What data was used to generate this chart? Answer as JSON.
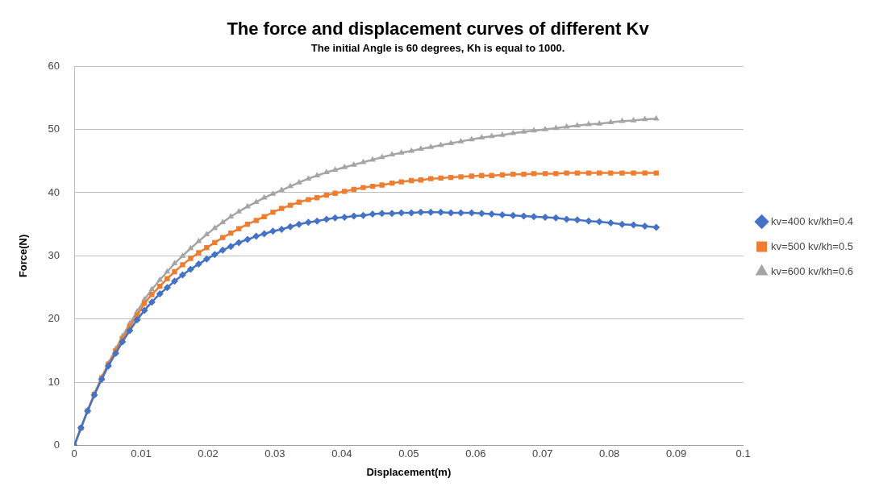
{
  "chart_data": {
    "type": "line",
    "title": "The force and displacement curves of different Kv",
    "subtitle": "The initial Angle is 60 degrees, Kh is equal to 1000.",
    "xlabel": "Displacement(m)",
    "ylabel": "Force(N)",
    "x": [
      0,
      0.001,
      0.002,
      0.003,
      0.0041,
      0.0051,
      0.0062,
      0.0072,
      0.0083,
      0.0094,
      0.0105,
      0.0116,
      0.0128,
      0.0139,
      0.015,
      0.0162,
      0.0174,
      0.0186,
      0.0198,
      0.021,
      0.0222,
      0.0234,
      0.0246,
      0.0259,
      0.0272,
      0.0284,
      0.0297,
      0.031,
      0.0323,
      0.0336,
      0.035,
      0.0363,
      0.0377,
      0.039,
      0.0404,
      0.0418,
      0.0432,
      0.0446,
      0.046,
      0.0475,
      0.0489,
      0.0504,
      0.0518,
      0.0533,
      0.0548,
      0.0563,
      0.0578,
      0.0594,
      0.0609,
      0.0624,
      0.064,
      0.0656,
      0.0672,
      0.0687,
      0.0704,
      0.072,
      0.0736,
      0.0752,
      0.0769,
      0.0785,
      0.0802,
      0.0819,
      0.0836,
      0.0853,
      0.087
    ],
    "series": [
      {
        "name": "kv=400 kv/kh=0.4",
        "color": "#4472c4",
        "marker": "diamond",
        "values": [
          0,
          2.8,
          5.5,
          8.0,
          10.5,
          12.6,
          14.6,
          16.4,
          18.2,
          19.9,
          21.4,
          22.7,
          24.0,
          25.0,
          26.0,
          27.0,
          27.9,
          28.7,
          29.5,
          30.2,
          30.9,
          31.5,
          32.1,
          32.6,
          33.1,
          33.5,
          33.9,
          34.2,
          34.6,
          35.0,
          35.3,
          35.5,
          35.8,
          36.0,
          36.1,
          36.3,
          36.4,
          36.6,
          36.7,
          36.7,
          36.8,
          36.8,
          36.9,
          36.9,
          36.9,
          36.8,
          36.8,
          36.8,
          36.7,
          36.6,
          36.5,
          36.4,
          36.3,
          36.2,
          36.1,
          36.0,
          35.8,
          35.7,
          35.5,
          35.4,
          35.2,
          35.0,
          34.9,
          34.7,
          34.5
        ]
      },
      {
        "name": "kv=500 kv/kh=0.5",
        "color": "#ed7d31",
        "marker": "square",
        "values": [
          0,
          2.8,
          5.5,
          8.1,
          10.7,
          12.9,
          15.0,
          16.9,
          18.8,
          20.6,
          22.5,
          23.9,
          25.2,
          26.4,
          27.5,
          28.6,
          29.6,
          30.5,
          31.3,
          32.1,
          32.9,
          33.6,
          34.3,
          35.0,
          35.6,
          36.2,
          36.9,
          37.5,
          38.0,
          38.5,
          38.9,
          39.2,
          39.6,
          39.9,
          40.2,
          40.5,
          40.8,
          41.0,
          41.2,
          41.5,
          41.7,
          41.9,
          42.0,
          42.2,
          42.3,
          42.4,
          42.5,
          42.6,
          42.7,
          42.7,
          42.8,
          42.9,
          42.9,
          43.0,
          43.0,
          43.0,
          43.1,
          43.1,
          43.1,
          43.1,
          43.1,
          43.1,
          43.1,
          43.1,
          43.1
        ]
      },
      {
        "name": "kv=600 kv/kh=0.6",
        "color": "#a5a5a5",
        "marker": "triangle",
        "values": [
          0,
          2.8,
          5.6,
          8.2,
          10.8,
          13.0,
          15.3,
          17.3,
          19.3,
          21.2,
          23.1,
          24.7,
          26.2,
          27.5,
          28.8,
          30.0,
          31.2,
          32.3,
          33.4,
          34.4,
          35.3,
          36.2,
          37.0,
          37.8,
          38.5,
          39.2,
          39.8,
          40.4,
          41.0,
          41.6,
          42.2,
          42.7,
          43.2,
          43.6,
          44.0,
          44.4,
          44.8,
          45.2,
          45.6,
          46.0,
          46.3,
          46.6,
          46.9,
          47.2,
          47.5,
          47.8,
          48.1,
          48.4,
          48.7,
          48.9,
          49.1,
          49.4,
          49.6,
          49.8,
          50.0,
          50.2,
          50.4,
          50.6,
          50.8,
          50.9,
          51.1,
          51.3,
          51.4,
          51.6,
          51.7
        ]
      }
    ],
    "xlim": [
      0,
      0.1
    ],
    "xticks": [
      0,
      0.01,
      0.02,
      0.03,
      0.04,
      0.05,
      0.06,
      0.07,
      0.08,
      0.09,
      0.1
    ],
    "ylim": [
      0,
      60
    ],
    "yticks": [
      0,
      10,
      20,
      30,
      40,
      50,
      60
    ],
    "grid": "y",
    "legend": "right",
    "line_style": "solid"
  }
}
